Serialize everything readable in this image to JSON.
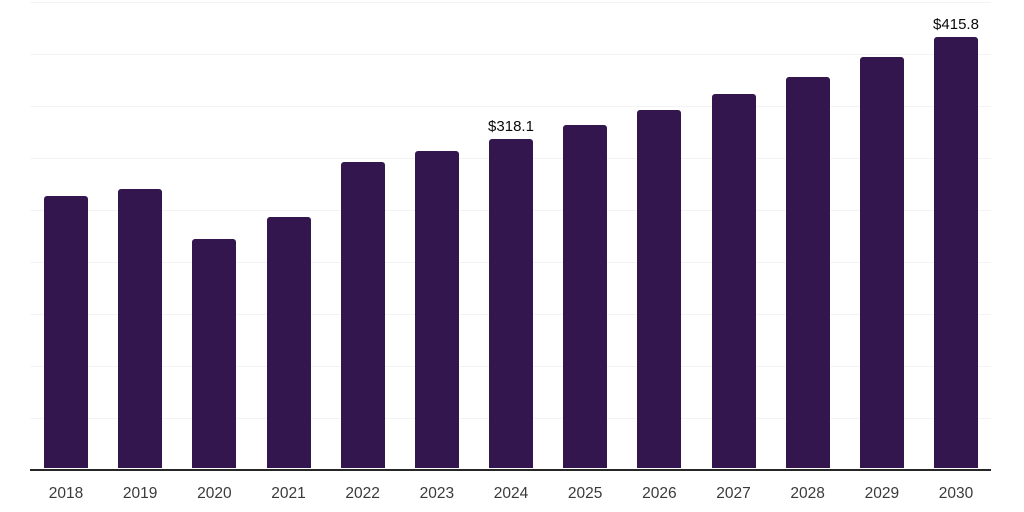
{
  "chart_data": {
    "type": "bar",
    "title": "",
    "xlabel": "",
    "ylabel": "",
    "categories": [
      "2018",
      "2019",
      "2020",
      "2021",
      "2022",
      "2023",
      "2024",
      "2025",
      "2026",
      "2027",
      "2028",
      "2029",
      "2030"
    ],
    "values": [
      262.6,
      269.8,
      221.8,
      242.9,
      295.7,
      306.2,
      318.1,
      331.2,
      345.6,
      361.0,
      377.3,
      396.5,
      415.8
    ],
    "point_labels": [
      "",
      "",
      "",
      "",
      "",
      "",
      "$318.1",
      "",
      "",
      "",
      "",
      "",
      "$415.8"
    ],
    "ylim": [
      0,
      450
    ],
    "gridline_step": 50,
    "grid": "horizontal",
    "legend": "none",
    "y_axis_labels_visible": false,
    "colors": {
      "bar": "#33164d",
      "axis_line": "#262626",
      "gridline": "#f3f3f3",
      "tick_label": "#3a3a3a",
      "data_label": "#0a0a0a",
      "background": "#ffffff"
    }
  }
}
